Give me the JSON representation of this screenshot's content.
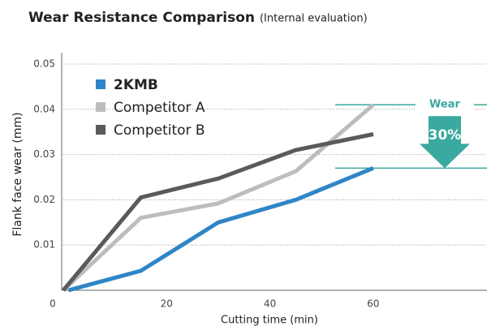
{
  "chart_data": {
    "type": "line",
    "title": "Wear Resistance Comparison",
    "subtitle": "(Internal evaluation)",
    "x_label": "Cutting time (min)",
    "y_label": "Flank face wear (mm)",
    "series": [
      {
        "name": "2KMB",
        "color": "#2f86c6",
        "x": [
          1,
          15,
          30,
          45,
          60
        ],
        "values": [
          0,
          0.0043,
          0.015,
          0.02,
          0.027
        ]
      },
      {
        "name": "Competitor A",
        "color": "#bdbdbd",
        "x": [
          0,
          15,
          30,
          45,
          60
        ],
        "values": [
          0,
          0.016,
          0.0192,
          0.0263,
          0.041
        ]
      },
      {
        "name": "Competitor B",
        "color": "#5a5a5c",
        "x": [
          0,
          15,
          30,
          45,
          60
        ],
        "values": [
          0,
          0.0205,
          0.0247,
          0.031,
          0.0345
        ]
      }
    ],
    "xlim": [
      0,
      82
    ],
    "xticks": [
      0,
      20,
      40,
      60
    ],
    "ylim": [
      0,
      0.05
    ],
    "yticks": [
      0.01,
      0.02,
      0.03,
      0.04,
      0.05
    ],
    "grid": true,
    "annotations": [
      "Wear",
      "30%"
    ]
  }
}
